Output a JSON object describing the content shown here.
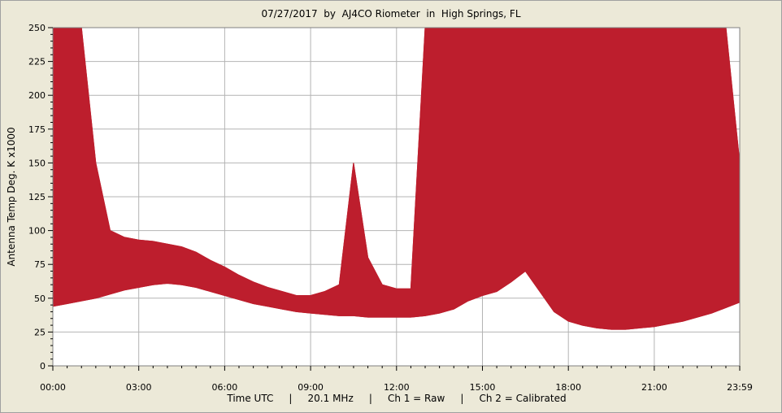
{
  "chart_data": {
    "type": "line",
    "title": "07/27/2017  by  AJ4CO Riometer  in  High Springs, FL",
    "xlabel": "Time UTC",
    "ylabel": "Antenna Temp Deg. K x1000",
    "footer_items": [
      "Time UTC",
      "20.1 MHz",
      "Ch 1 = Raw",
      "Ch 2 = Calibrated"
    ],
    "xlim": [
      0,
      1439
    ],
    "ylim": [
      0,
      250
    ],
    "grid": true,
    "x_ticks": [
      0,
      180,
      360,
      540,
      720,
      900,
      1080,
      1260,
      1439
    ],
    "x_tick_labels": [
      "00:00",
      "03:00",
      "06:00",
      "09:00",
      "12:00",
      "15:00",
      "18:00",
      "21:00",
      "23:59"
    ],
    "y_ticks": [
      0,
      25,
      50,
      75,
      100,
      125,
      150,
      175,
      200,
      225,
      250
    ],
    "series": [
      {
        "name": "Ch 1 = Raw",
        "color": "#bd1e2d",
        "x": [
          0,
          30,
          60,
          90,
          120,
          150,
          180,
          210,
          240,
          270,
          300,
          330,
          360,
          390,
          420,
          450,
          480,
          510,
          540,
          570,
          600,
          630,
          660,
          690,
          720,
          750,
          780,
          810,
          840,
          870,
          900,
          930,
          960,
          990,
          1020,
          1050,
          1080,
          1110,
          1140,
          1170,
          1200,
          1230,
          1260,
          1290,
          1320,
          1350,
          1380,
          1410,
          1439
        ],
        "lower": [
          44,
          46,
          48,
          50,
          53,
          56,
          58,
          60,
          61,
          60,
          58,
          55,
          52,
          49,
          46,
          44,
          42,
          40,
          39,
          38,
          37,
          37,
          36,
          36,
          36,
          36,
          37,
          39,
          42,
          48,
          52,
          55,
          62,
          70,
          55,
          40,
          33,
          30,
          28,
          27,
          27,
          28,
          29,
          31,
          33,
          36,
          39,
          43,
          47
        ],
        "upper": [
          250,
          250,
          250,
          150,
          100,
          95,
          93,
          92,
          90,
          88,
          84,
          78,
          73,
          67,
          62,
          58,
          55,
          52,
          52,
          55,
          60,
          150,
          80,
          60,
          57,
          57,
          250,
          250,
          250,
          250,
          250,
          250,
          250,
          250,
          250,
          250,
          250,
          250,
          250,
          250,
          250,
          250,
          250,
          250,
          250,
          250,
          250,
          250,
          150
        ]
      }
    ]
  }
}
